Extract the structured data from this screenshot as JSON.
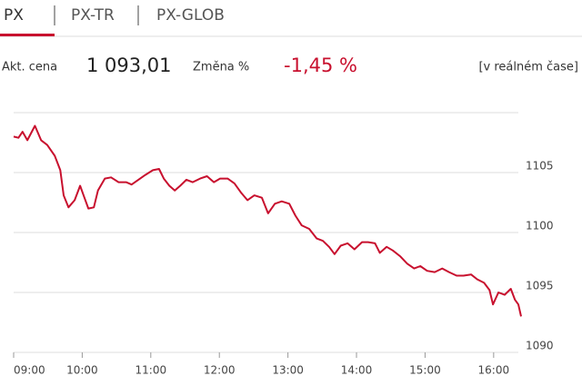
{
  "tabs": [
    "PX",
    "PX-TR",
    "PX-GLOB"
  ],
  "quote": {
    "price_label": "Akt. cena",
    "price": "1 093,01",
    "change_label": "Změna %",
    "change": "-1,45 %",
    "realtime": "[v reálném čase]"
  },
  "chart_data": {
    "type": "line",
    "color": "#c8102e",
    "grid": true,
    "x": [
      9.0,
      9.07,
      9.13,
      9.2,
      9.31,
      9.4,
      9.49,
      9.6,
      9.68,
      9.73,
      9.8,
      9.89,
      9.97,
      10.02,
      10.09,
      10.17,
      10.23,
      10.33,
      10.42,
      10.53,
      10.64,
      10.72,
      10.82,
      10.92,
      11.03,
      11.12,
      11.19,
      11.27,
      11.35,
      11.43,
      11.52,
      11.61,
      11.72,
      11.82,
      11.92,
      12.01,
      12.12,
      12.22,
      12.32,
      12.41,
      12.51,
      12.62,
      12.71,
      12.81,
      12.91,
      13.02,
      13.11,
      13.2,
      13.31,
      13.42,
      13.51,
      13.6,
      13.68,
      13.77,
      13.87,
      13.97,
      14.08,
      14.17,
      14.27,
      14.34,
      14.44,
      14.53,
      14.64,
      14.74,
      14.84,
      14.93,
      15.03,
      15.14,
      15.25,
      15.35,
      15.46,
      15.56,
      15.67,
      15.76,
      15.86,
      15.94,
      15.99,
      16.07,
      16.16,
      16.25,
      16.31,
      16.36,
      16.4
    ],
    "values": [
      1108.0,
      1107.9,
      1108.4,
      1107.7,
      1108.9,
      1107.7,
      1107.3,
      1106.4,
      1105.2,
      1103.1,
      1102.1,
      1102.7,
      1103.9,
      1103.1,
      1102.0,
      1102.1,
      1103.5,
      1104.5,
      1104.6,
      1104.2,
      1104.2,
      1104.0,
      1104.4,
      1104.8,
      1105.2,
      1105.3,
      1104.5,
      1103.9,
      1103.5,
      1103.9,
      1104.4,
      1104.2,
      1104.5,
      1104.7,
      1104.2,
      1104.5,
      1104.5,
      1104.1,
      1103.3,
      1102.7,
      1103.1,
      1102.9,
      1101.6,
      1102.4,
      1102.6,
      1102.4,
      1101.4,
      1100.6,
      1100.3,
      1099.5,
      1099.3,
      1098.8,
      1098.2,
      1098.9,
      1099.1,
      1098.6,
      1099.2,
      1099.2,
      1099.1,
      1098.3,
      1098.8,
      1098.5,
      1098.0,
      1097.4,
      1097.0,
      1097.2,
      1096.8,
      1096.7,
      1097.0,
      1096.7,
      1096.4,
      1096.4,
      1096.5,
      1096.1,
      1095.8,
      1095.2,
      1094.0,
      1095.0,
      1094.8,
      1095.3,
      1094.4,
      1094.0,
      1093.0
    ],
    "xlim": [
      9,
      16.4
    ],
    "xticks": [
      {
        "value": 9,
        "label": "09:00"
      },
      {
        "value": 10,
        "label": "10:00"
      },
      {
        "value": 11,
        "label": "11:00"
      },
      {
        "value": 12,
        "label": "12:00"
      },
      {
        "value": 13,
        "label": "13:00"
      },
      {
        "value": 14,
        "label": "14:00"
      },
      {
        "value": 15,
        "label": "15:00"
      },
      {
        "value": 16,
        "label": "16:00"
      }
    ],
    "ylim": [
      1090,
      1110
    ],
    "yticks": [
      1090,
      1095,
      1100,
      1105
    ]
  }
}
